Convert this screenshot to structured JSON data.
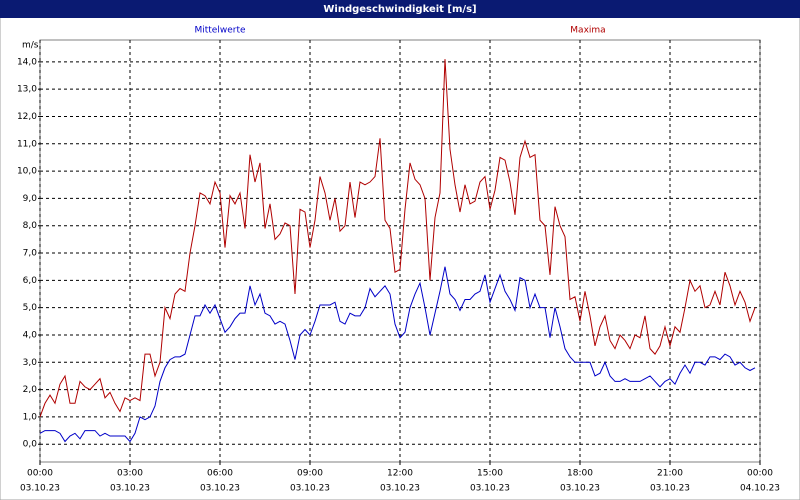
{
  "chart_data": {
    "type": "line",
    "title": "Windgeschwindigkeit [m/s]",
    "y_label": "m/s",
    "xlim": [
      0,
      1440
    ],
    "ylim": [
      -0.65,
      14.8
    ],
    "xticks": [
      {
        "value": 0,
        "label": "00:00",
        "date": "03.10.23"
      },
      {
        "value": 180,
        "label": "03:00",
        "date": "03.10.23"
      },
      {
        "value": 360,
        "label": "06:00",
        "date": "03.10.23"
      },
      {
        "value": 540,
        "label": "09:00",
        "date": "03.10.23"
      },
      {
        "value": 720,
        "label": "12:00",
        "date": "03.10.23"
      },
      {
        "value": 900,
        "label": "15:00",
        "date": "03.10.23"
      },
      {
        "value": 1080,
        "label": "18:00",
        "date": "03.10.23"
      },
      {
        "value": 1260,
        "label": "21:00",
        "date": "03.10.23"
      },
      {
        "value": 1440,
        "label": "00:00",
        "date": "04.10.23"
      }
    ],
    "yticks": [
      {
        "value": 0,
        "label": "0,0"
      },
      {
        "value": 1,
        "label": "1,0"
      },
      {
        "value": 2,
        "label": "2,0"
      },
      {
        "value": 3,
        "label": "3,0"
      },
      {
        "value": 4,
        "label": "4,0"
      },
      {
        "value": 5,
        "label": "5,0"
      },
      {
        "value": 6,
        "label": "6,0"
      },
      {
        "value": 7,
        "label": "7,0"
      },
      {
        "value": 8,
        "label": "8,0"
      },
      {
        "value": 9,
        "label": "9,0"
      },
      {
        "value": 10,
        "label": "10,0"
      },
      {
        "value": 11,
        "label": "11,0"
      },
      {
        "value": 12,
        "label": "12,0"
      },
      {
        "value": 13,
        "label": "13,0"
      },
      {
        "value": 14,
        "label": "14,0"
      }
    ],
    "grid": true,
    "x": [
      0,
      10,
      20,
      30,
      40,
      50,
      60,
      70,
      80,
      90,
      100,
      110,
      120,
      130,
      140,
      150,
      160,
      170,
      180,
      190,
      200,
      210,
      220,
      230,
      240,
      250,
      260,
      270,
      280,
      290,
      300,
      310,
      320,
      330,
      340,
      350,
      360,
      370,
      380,
      390,
      400,
      410,
      420,
      430,
      440,
      450,
      460,
      470,
      480,
      490,
      500,
      510,
      520,
      530,
      540,
      550,
      560,
      570,
      580,
      590,
      600,
      610,
      620,
      630,
      640,
      650,
      660,
      670,
      680,
      690,
      700,
      710,
      720,
      730,
      740,
      750,
      760,
      770,
      780,
      790,
      800,
      810,
      820,
      830,
      840,
      850,
      860,
      870,
      880,
      890,
      900,
      910,
      920,
      930,
      940,
      950,
      960,
      970,
      980,
      990,
      1000,
      1010,
      1020,
      1030,
      1040,
      1050,
      1060,
      1070,
      1080,
      1090,
      1100,
      1110,
      1120,
      1130,
      1140,
      1150,
      1160,
      1170,
      1180,
      1190,
      1200,
      1210,
      1220,
      1230,
      1240,
      1250,
      1260,
      1270,
      1280,
      1290,
      1300,
      1310,
      1320,
      1330,
      1340,
      1350,
      1360,
      1370,
      1380,
      1390,
      1400,
      1410,
      1420,
      1430
    ],
    "series": [
      {
        "name": "Mittelwerte",
        "color": "#0000c8",
        "values": [
          0.4,
          0.5,
          0.5,
          0.5,
          0.4,
          0.1,
          0.3,
          0.4,
          0.2,
          0.5,
          0.5,
          0.5,
          0.3,
          0.4,
          0.3,
          0.3,
          0.3,
          0.3,
          0.1,
          0.4,
          1.0,
          0.9,
          1.0,
          1.4,
          2.3,
          2.8,
          3.1,
          3.2,
          3.2,
          3.3,
          4.0,
          4.7,
          4.7,
          5.1,
          4.8,
          5.1,
          4.6,
          4.1,
          4.3,
          4.6,
          4.8,
          4.8,
          5.8,
          5.1,
          5.5,
          4.8,
          4.7,
          4.4,
          4.5,
          4.4,
          3.8,
          3.1,
          4.0,
          4.2,
          4.0,
          4.5,
          5.1,
          5.1,
          5.1,
          5.2,
          4.5,
          4.4,
          4.8,
          4.7,
          4.7,
          5.0,
          5.7,
          5.4,
          5.6,
          5.8,
          5.5,
          4.4,
          3.9,
          4.1,
          5.0,
          5.5,
          5.9,
          5.0,
          4.0,
          4.8,
          5.6,
          6.5,
          5.5,
          5.3,
          4.9,
          5.3,
          5.3,
          5.5,
          5.6,
          6.2,
          5.2,
          5.7,
          6.2,
          5.6,
          5.3,
          4.9,
          6.1,
          6.0,
          5.0,
          5.5,
          5.0,
          5.0,
          3.9,
          5.0,
          4.3,
          3.5,
          3.2,
          3.0,
          3.0,
          3.0,
          3.0,
          2.5,
          2.6,
          3.0,
          2.5,
          2.3,
          2.3,
          2.4,
          2.3,
          2.3,
          2.3,
          2.4,
          2.5,
          2.3,
          2.1,
          2.3,
          2.4,
          2.2,
          2.6,
          2.9,
          2.6,
          3.0,
          3.0,
          2.9,
          3.2,
          3.2,
          3.1,
          3.3,
          3.2,
          2.9,
          3.0,
          2.8,
          2.7,
          2.8
        ]
      },
      {
        "name": "Maxima",
        "color": "#b00000",
        "values": [
          1.0,
          1.5,
          1.8,
          1.5,
          2.2,
          2.5,
          1.5,
          1.5,
          2.3,
          2.1,
          2.0,
          2.2,
          2.4,
          1.7,
          1.9,
          1.5,
          1.2,
          1.7,
          1.6,
          1.7,
          1.6,
          3.3,
          3.3,
          2.5,
          3.0,
          5.0,
          4.6,
          5.5,
          5.7,
          5.6,
          7.0,
          8.0,
          9.2,
          9.1,
          8.8,
          9.6,
          9.2,
          7.2,
          9.1,
          8.8,
          9.2,
          7.9,
          10.6,
          9.6,
          10.3,
          7.9,
          8.8,
          7.5,
          7.7,
          8.1,
          8.0,
          5.5,
          8.6,
          8.5,
          7.2,
          8.2,
          9.8,
          9.2,
          8.2,
          9.0,
          7.8,
          8.0,
          9.6,
          8.3,
          9.6,
          9.5,
          9.6,
          9.8,
          11.2,
          8.2,
          7.9,
          6.3,
          6.4,
          8.6,
          10.3,
          9.7,
          9.5,
          9.0,
          6.0,
          8.3,
          9.2,
          14.1,
          10.8,
          9.5,
          8.5,
          9.5,
          8.8,
          8.9,
          9.6,
          9.8,
          8.6,
          9.3,
          10.5,
          10.4,
          9.6,
          8.4,
          10.5,
          11.1,
          10.5,
          10.6,
          8.2,
          8.0,
          6.2,
          8.7,
          8.0,
          7.6,
          5.3,
          5.4,
          4.5,
          5.6,
          4.7,
          3.6,
          4.3,
          4.7,
          3.8,
          3.5,
          4.0,
          3.8,
          3.5,
          4.0,
          3.9,
          4.7,
          3.5,
          3.3,
          3.6,
          4.3,
          3.6,
          4.3,
          4.1,
          5.0,
          6.0,
          5.6,
          5.8,
          5.0,
          5.1,
          5.6,
          5.1,
          6.3,
          5.8,
          5.1,
          5.6,
          5.2,
          4.5,
          5.0
        ]
      }
    ]
  }
}
